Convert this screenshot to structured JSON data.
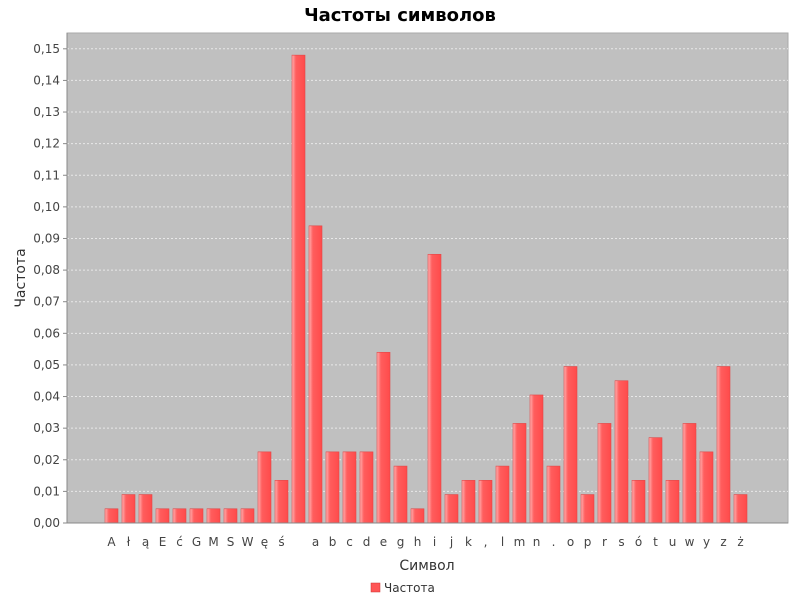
{
  "chart_data": {
    "type": "bar",
    "title": "Частоты символов",
    "xlabel": "Символ",
    "ylabel": "Частота",
    "ylim": [
      0,
      0.155
    ],
    "yticks": [
      "0,00",
      "0,01",
      "0,02",
      "0,03",
      "0,04",
      "0,05",
      "0,06",
      "0,07",
      "0,08",
      "0,09",
      "0,10",
      "0,11",
      "0,12",
      "0,13",
      "0,14",
      "0,15"
    ],
    "grid": true,
    "legend_position": "bottom",
    "categories": [
      "A",
      "ł",
      "ą",
      "E",
      "ć",
      "G",
      "M",
      "S",
      "W",
      "ę",
      "ś",
      " ",
      "a",
      "b",
      "c",
      "d",
      "e",
      "g",
      "h",
      "i",
      "j",
      "k",
      ",",
      "l",
      "m",
      "n",
      ".",
      "o",
      "p",
      "r",
      "s",
      "ó",
      "t",
      "u",
      "w",
      "y",
      "z",
      "ż"
    ],
    "series": [
      {
        "name": "Частота",
        "values": [
          0.0045,
          0.009,
          0.009,
          0.0045,
          0.0045,
          0.0045,
          0.0045,
          0.0045,
          0.0045,
          0.0225,
          0.0135,
          0.148,
          0.094,
          0.0225,
          0.0225,
          0.0225,
          0.054,
          0.018,
          0.0045,
          0.085,
          0.009,
          0.0135,
          0.0135,
          0.018,
          0.0315,
          0.0405,
          0.018,
          0.0495,
          0.009,
          0.0315,
          0.045,
          0.0135,
          0.027,
          0.0135,
          0.0315,
          0.0225,
          0.0495,
          0.009
        ]
      }
    ],
    "colors": {
      "bar": "#ff5555",
      "bar_highlight": "#ffaaaa",
      "plot_background": "#c0c0c0",
      "grid": "#e8e8e8"
    }
  }
}
